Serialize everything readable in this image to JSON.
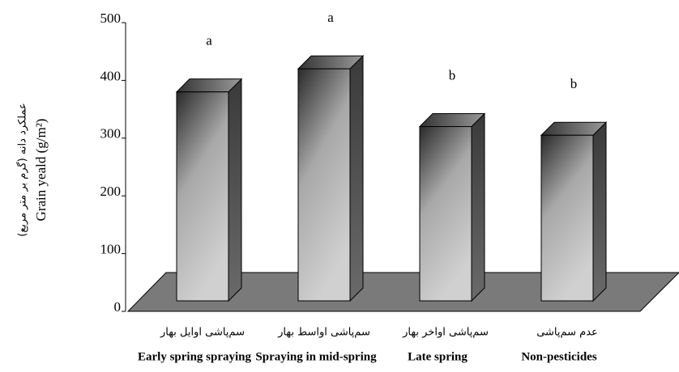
{
  "chart_data": {
    "type": "bar3d",
    "y_label": "Grain yeald (g/m²)",
    "y_label_secondary": "عملکرد دانه (گرم بر متر مربع)",
    "categories": [
      "Early spring spraying",
      "Spraying in mid-spring",
      "Late spring",
      "Non-pesticides"
    ],
    "categories_secondary": [
      "سم‌پاشی اوایل بهار",
      "سم‌پاشی اواسط بهار",
      "سم‌پاشی اواخر بهار",
      "عدم سم‌پاشی"
    ],
    "values": [
      380,
      420,
      320,
      305
    ],
    "annotations": [
      "a",
      "a",
      "b",
      "b"
    ],
    "color": "#b0b0b0",
    "floor_color": "#7a7a7a",
    "ylim": [
      0,
      500
    ],
    "yticks": [
      0,
      100,
      200,
      300,
      400,
      500
    ]
  }
}
